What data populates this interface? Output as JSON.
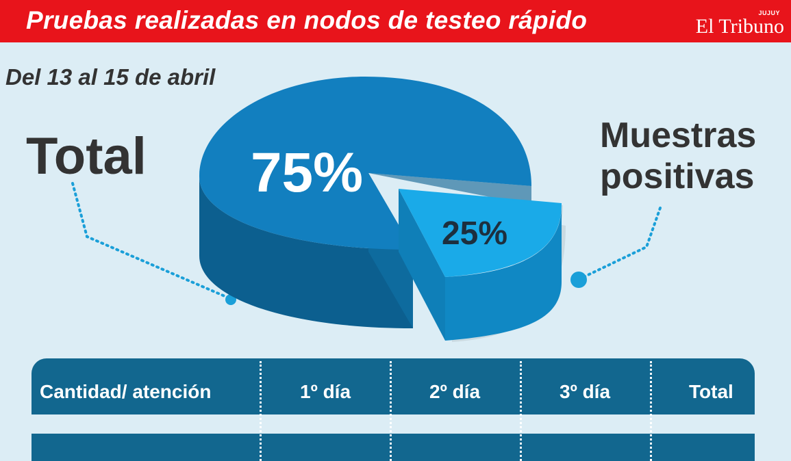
{
  "header": {
    "title": "Pruebas realizadas en nodos de testeo rápido",
    "brand_name": "El Tribuno",
    "brand_region": "JUJUY"
  },
  "subtitle": "Del 13 al 15 de abril",
  "labels": {
    "total": "Total",
    "positive_line1": "Muestras",
    "positive_line2": "positivas"
  },
  "colors": {
    "header": "#e8141b",
    "background": "#dcedf5",
    "slice_total_top": "#127fbf",
    "slice_total_side": "#0c5f8f",
    "slice_positive_top": "#1aaae8",
    "slice_positive_side": "#1088c4",
    "table_header": "#12678f",
    "leader_line": "#1a9fd8"
  },
  "chart_data": {
    "type": "pie",
    "title": "Pruebas realizadas en nodos de testeo rápido",
    "subtitle": "Del 13 al 15 de abril",
    "slices": [
      {
        "label": "Total",
        "value": 75,
        "display": "75%"
      },
      {
        "label": "Muestras positivas",
        "value": 25,
        "display": "25%"
      }
    ]
  },
  "table": {
    "headers": [
      "Cantidad/ atención",
      "1º día",
      "2º día",
      "3º día",
      "Total"
    ]
  }
}
